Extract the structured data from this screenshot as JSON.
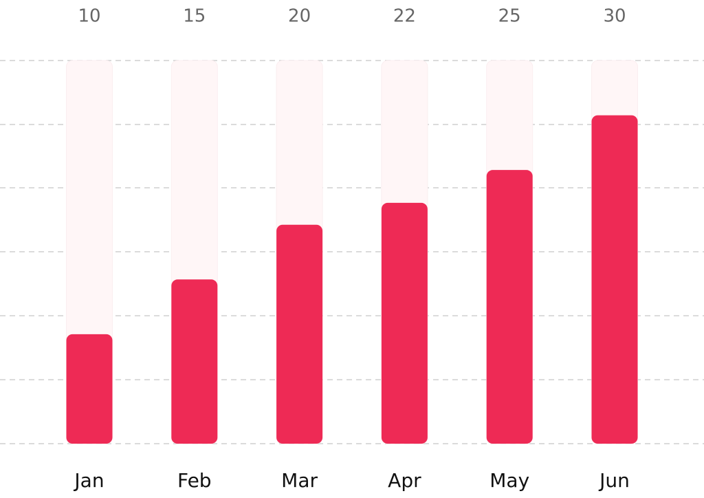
{
  "chart_data": {
    "type": "bar",
    "categories": [
      "Jan",
      "Feb",
      "Mar",
      "Apr",
      "May",
      "Jun"
    ],
    "values": [
      10,
      15,
      20,
      22,
      25,
      30
    ],
    "color": "#ee2a55",
    "ylim": [
      0,
      35
    ]
  }
}
